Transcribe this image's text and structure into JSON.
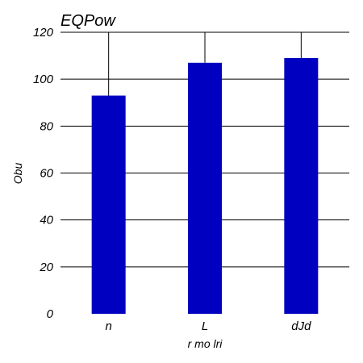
{
  "chart_data": {
    "type": "bar",
    "title": "EQPow",
    "xlabel": "r mo lri",
    "ylabel": "Obu",
    "categories": [
      "n",
      "L",
      "dJd"
    ],
    "values": [
      93,
      107,
      109
    ],
    "error_upper": [
      120,
      120,
      120
    ],
    "ylim": [
      0,
      120
    ],
    "yticks": [
      0,
      20,
      40,
      60,
      80,
      100,
      120
    ],
    "grid": true,
    "bar_color": "#0000c0"
  }
}
